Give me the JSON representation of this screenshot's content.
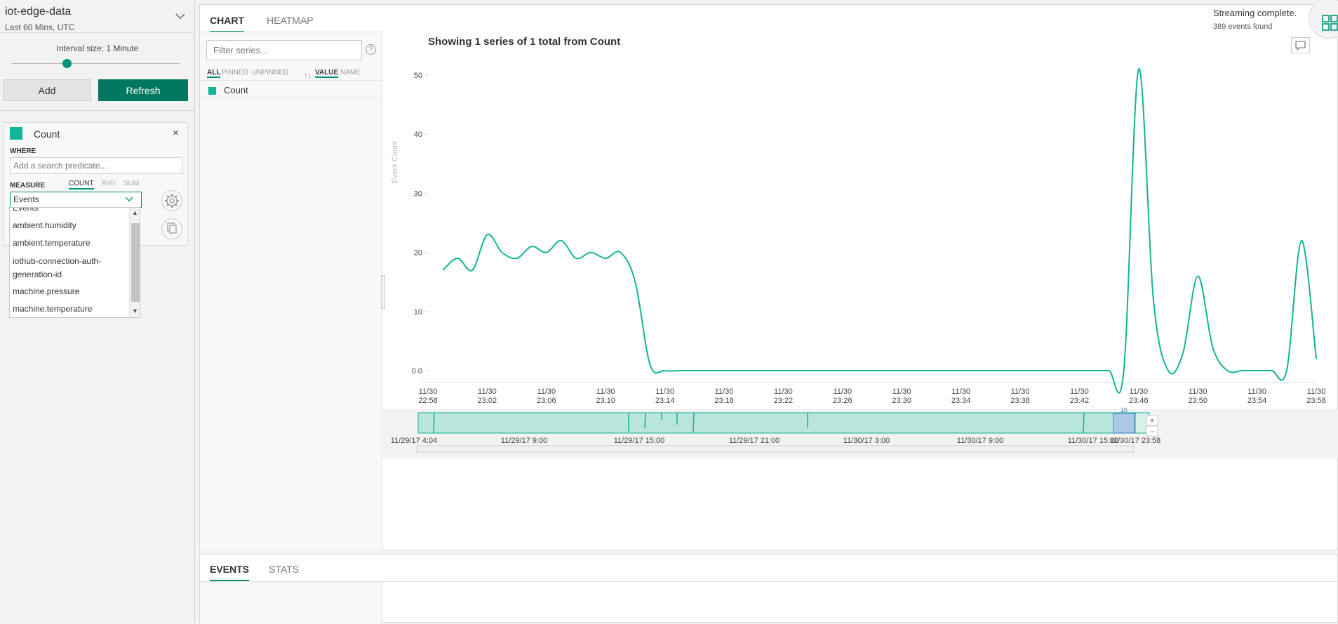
{
  "environment": {
    "name": "iot-edge-data",
    "time_range": "Last 60 Mins, UTC"
  },
  "interval": {
    "label": "Interval size: 1 Minute",
    "level": 0.33
  },
  "buttons": {
    "add": "Add",
    "refresh": "Refresh"
  },
  "series_card": {
    "name": "Count",
    "close": "×",
    "where_label": "WHERE",
    "where_placeholder": "Add a search predicate...",
    "measure_label": "MEASURE",
    "aggregates": [
      "COUNT",
      "AVG",
      "SUM"
    ],
    "selected_aggregate": "COUNT",
    "measure_value": "Events",
    "color": "#10b497"
  },
  "measure_options": [
    "Events",
    "ambient.humidity",
    "ambient.temperature",
    "iothub-connection-auth-generation-id",
    "machine.pressure",
    "machine.temperature"
  ],
  "tabs": {
    "chart": "CHART",
    "heatmap": "HEATMAP",
    "events": "EVENTS",
    "stats": "STATS"
  },
  "status": {
    "streaming": "Streaming complete.",
    "events_found": "389 events found"
  },
  "series_panel": {
    "filter_placeholder": "Filter series...",
    "help": "?",
    "chips": {
      "all": "ALL",
      "pinned": "PINNED",
      "unpinned": "UNPINNED",
      "sort": "↑↓",
      "value": "VALUE",
      "name": "NAME"
    },
    "series": [
      {
        "label": "Count"
      }
    ]
  },
  "chart_data": {
    "type": "line",
    "title": "Showing 1 series of 1 total from Count",
    "ylabel": "Event Count",
    "xlabel": "",
    "ylim": [
      0,
      52
    ],
    "yticks": [
      {
        "value": 0,
        "label": "0.0"
      },
      {
        "value": 10,
        "label": "10"
      },
      {
        "value": 20,
        "label": "20"
      },
      {
        "value": 30,
        "label": "30"
      },
      {
        "value": 40,
        "label": "40"
      },
      {
        "value": 50,
        "label": "50"
      }
    ],
    "xlim": [
      "11/30 22:58",
      "11/30 23:58"
    ],
    "xticks": [
      {
        "date": "11/30",
        "time": "22:58"
      },
      {
        "date": "11/30",
        "time": "23:02"
      },
      {
        "date": "11/30",
        "time": "23:06"
      },
      {
        "date": "11/30",
        "time": "23:10"
      },
      {
        "date": "11/30",
        "time": "23:14"
      },
      {
        "date": "11/30",
        "time": "23:18"
      },
      {
        "date": "11/30",
        "time": "23:22"
      },
      {
        "date": "11/30",
        "time": "23:26"
      },
      {
        "date": "11/30",
        "time": "23:30"
      },
      {
        "date": "11/30",
        "time": "23:34"
      },
      {
        "date": "11/30",
        "time": "23:38"
      },
      {
        "date": "11/30",
        "time": "23:42"
      },
      {
        "date": "11/30",
        "time": "23:46"
      },
      {
        "date": "11/30",
        "time": "23:50"
      },
      {
        "date": "11/30",
        "time": "23:54"
      },
      {
        "date": "11/30",
        "time": "23:58"
      }
    ],
    "series": [
      {
        "name": "Count",
        "color": "#10b497",
        "x": [
          "22:59",
          "23:00",
          "23:01",
          "23:02",
          "23:03",
          "23:04",
          "23:05",
          "23:06",
          "23:07",
          "23:08",
          "23:09",
          "23:10",
          "23:11",
          "23:12",
          "23:13",
          "23:14",
          "23:15",
          "23:16",
          "23:17",
          "23:18",
          "23:19",
          "23:20",
          "23:21",
          "23:22",
          "23:23",
          "23:24",
          "23:25",
          "23:26",
          "23:27",
          "23:28",
          "23:29",
          "23:30",
          "23:31",
          "23:32",
          "23:33",
          "23:34",
          "23:35",
          "23:36",
          "23:37",
          "23:38",
          "23:39",
          "23:40",
          "23:41",
          "23:42",
          "23:43",
          "23:44",
          "23:45",
          "23:46",
          "23:47",
          "23:48",
          "23:49",
          "23:50",
          "23:51",
          "23:52",
          "23:53",
          "23:54",
          "23:55",
          "23:56",
          "23:57",
          "23:58"
        ],
        "y": [
          17,
          19,
          17,
          23,
          20,
          19,
          21,
          20,
          22,
          19,
          20,
          19,
          20,
          15,
          1,
          0,
          0,
          0,
          0,
          0,
          0,
          0,
          0,
          0,
          0,
          0,
          0,
          0,
          0,
          0,
          0,
          0,
          0,
          0,
          0,
          0,
          0,
          0,
          0,
          0,
          0,
          0,
          0,
          0,
          0,
          0,
          0,
          51,
          12,
          0,
          3,
          16,
          4,
          0,
          0,
          0,
          0,
          0,
          22,
          2
        ]
      }
    ],
    "grid": false,
    "legend": "none"
  },
  "brush": {
    "ticks": [
      "11/29/17 4:04",
      "11/29/17 9:00",
      "11/29/17 15:00",
      "11/29/17 21:00",
      "11/30/17 3:00",
      "11/30/17 9:00",
      "11/30/17 15:00",
      "11/30/17 23:58"
    ],
    "window_label": "1h",
    "zoom_in": "+",
    "zoom_out": "-"
  },
  "icons": {
    "env_chevron": "chevron-down-icon",
    "settings": "gear-icon",
    "copy": "copy-icon",
    "comment": "comment-icon",
    "layout": "grid-layout-icon"
  }
}
